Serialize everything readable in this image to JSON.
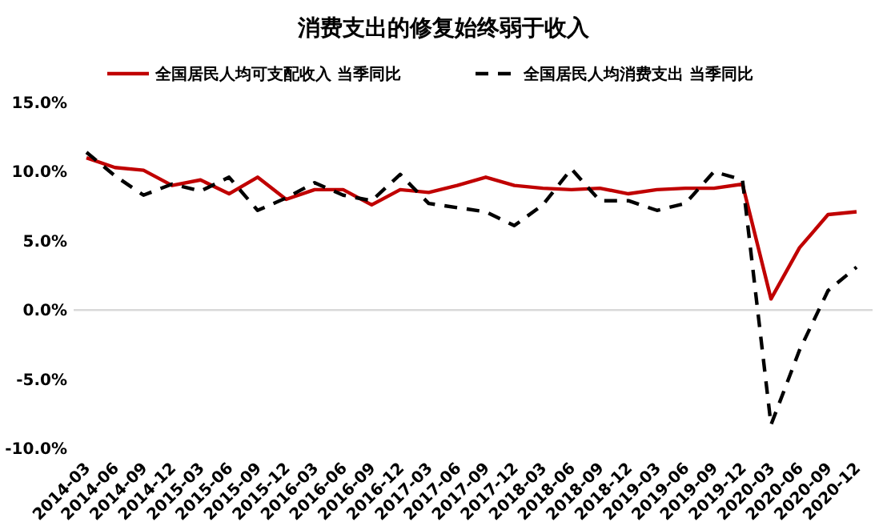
{
  "chart_data": {
    "type": "line",
    "title": "消费支出的修复始终弱于收入",
    "categories": [
      "2014-03",
      "2014-06",
      "2014-09",
      "2014-12",
      "2015-03",
      "2015-06",
      "2015-09",
      "2015-12",
      "2016-03",
      "2016-06",
      "2016-09",
      "2016-12",
      "2017-03",
      "2017-06",
      "2017-09",
      "2017-12",
      "2018-03",
      "2018-06",
      "2018-09",
      "2018-12",
      "2019-03",
      "2019-06",
      "2019-09",
      "2019-12",
      "2020-03",
      "2020-06",
      "2020-09",
      "2020-12"
    ],
    "series": [
      {
        "name": "全国居民人均可支配收入 当季同比",
        "color": "#c00000",
        "line_style": "solid",
        "values": [
          11.0,
          10.3,
          10.1,
          9.0,
          9.4,
          8.4,
          9.6,
          8.0,
          8.7,
          8.7,
          7.6,
          8.7,
          8.5,
          9.0,
          9.6,
          9.0,
          8.8,
          8.7,
          8.8,
          8.4,
          8.7,
          8.8,
          8.8,
          9.1,
          0.8,
          4.5,
          6.9,
          7.1
        ]
      },
      {
        "name": "全国居民人均消费支出 当季同比",
        "color": "#000000",
        "line_style": "dashed",
        "values": [
          11.4,
          9.7,
          8.3,
          9.1,
          8.6,
          9.6,
          7.2,
          8.1,
          9.2,
          8.3,
          7.9,
          9.8,
          7.7,
          7.4,
          7.1,
          6.1,
          7.6,
          10.2,
          7.9,
          7.9,
          7.2,
          7.7,
          10.0,
          9.4,
          -8.3,
          -2.9,
          1.4,
          3.1
        ]
      }
    ],
    "ylim": [
      -10,
      15
    ],
    "yticks": [
      {
        "value": -10,
        "label": "-10.0%"
      },
      {
        "value": -5,
        "label": "-5.0%"
      },
      {
        "value": 0,
        "label": "0.0%"
      },
      {
        "value": 5,
        "label": "5.0%"
      },
      {
        "value": 10,
        "label": "10.0%"
      },
      {
        "value": 15,
        "label": "15.0%"
      }
    ],
    "ref_lines": [
      {
        "axis": "y",
        "value": 0,
        "color": "#d9d9d9"
      }
    ],
    "grid": false,
    "legend": "top"
  }
}
